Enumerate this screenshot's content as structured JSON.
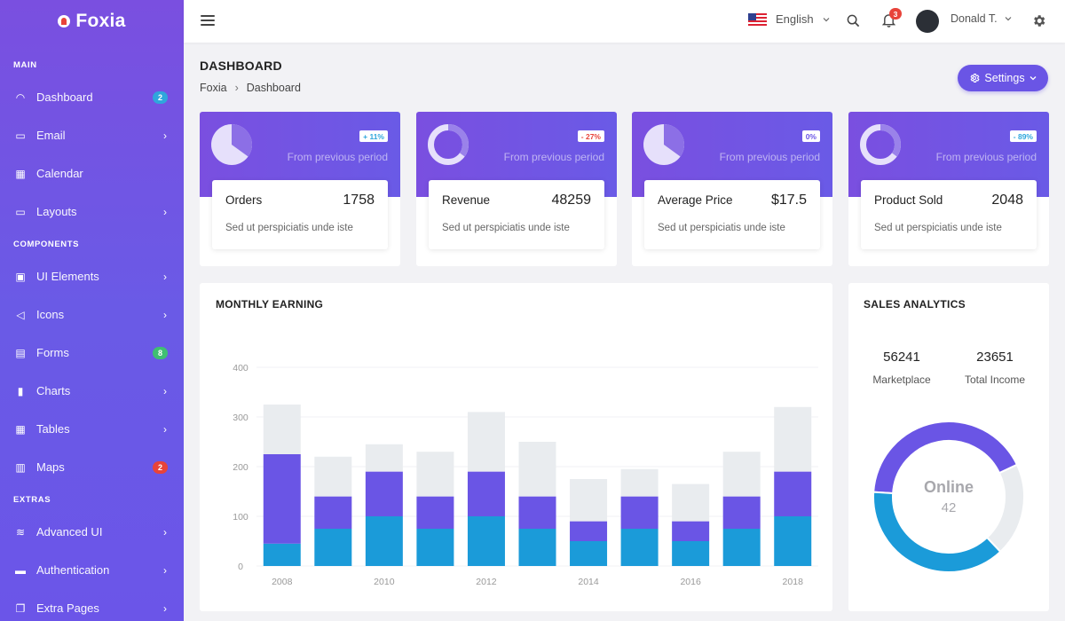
{
  "brand": {
    "name": "Foxia"
  },
  "sidebar": {
    "sections": [
      {
        "title": "MAIN"
      },
      {
        "title": "COMPONENTS"
      },
      {
        "title": "EXTRAS"
      }
    ],
    "items": [
      {
        "label": "Dashboard",
        "icon": "gauge-icon",
        "badge": "2",
        "badge_color": "#2fa6dc"
      },
      {
        "label": "Email",
        "icon": "inbox-icon",
        "chevron": true
      },
      {
        "label": "Calendar",
        "icon": "calendar-icon"
      },
      {
        "label": "Layouts",
        "icon": "monitor-icon",
        "chevron": true
      },
      {
        "label": "UI Elements",
        "icon": "briefcase-icon",
        "chevron": true
      },
      {
        "label": "Icons",
        "icon": "megaphone-icon",
        "chevron": true
      },
      {
        "label": "Forms",
        "icon": "clipboard-icon",
        "badge": "8",
        "badge_color": "#3fbf72"
      },
      {
        "label": "Charts",
        "icon": "bar-chart-icon",
        "chevron": true
      },
      {
        "label": "Tables",
        "icon": "grid-icon",
        "chevron": true
      },
      {
        "label": "Maps",
        "icon": "map-icon",
        "badge": "2",
        "badge_color": "#e8433a"
      },
      {
        "label": "Advanced UI",
        "icon": "layers-icon",
        "chevron": true
      },
      {
        "label": "Authentication",
        "icon": "archive-icon",
        "chevron": true
      },
      {
        "label": "Extra Pages",
        "icon": "copy-icon",
        "chevron": true
      }
    ]
  },
  "topbar": {
    "language": "English",
    "notification_count": "3",
    "username": "Donald T."
  },
  "page": {
    "title": "DASHBOARD",
    "breadcrumb": [
      "Foxia",
      "Dashboard"
    ],
    "settings_label": "Settings"
  },
  "stats": [
    {
      "name": "Orders",
      "value": "1758",
      "change": "+ 11%",
      "change_type": "up",
      "period": "From previous period",
      "desc": "Sed ut perspiciatis unde iste",
      "chart": "pie",
      "fraction": 0.35
    },
    {
      "name": "Revenue",
      "value": "48259",
      "change": "- 27%",
      "change_type": "down",
      "period": "From previous period",
      "desc": "Sed ut perspiciatis unde iste",
      "chart": "donut",
      "fraction": 0.35
    },
    {
      "name": "Average Price",
      "value": "$17.5",
      "change": "0%",
      "change_type": "neutral",
      "period": "From previous period",
      "desc": "Sed ut perspiciatis unde iste",
      "chart": "pie",
      "fraction": 0.35
    },
    {
      "name": "Product Sold",
      "value": "2048",
      "change": "- 89%",
      "change_type": "up",
      "period": "From previous period",
      "desc": "Sed ut perspiciatis unde iste",
      "chart": "donut",
      "fraction": 0.35
    }
  ],
  "monthly_earning": {
    "title": "MONTHLY EARNING"
  },
  "sales_analytics": {
    "title": "SALES ANALYTICS",
    "metrics": [
      {
        "value": "56241",
        "label": "Marketplace"
      },
      {
        "value": "23651",
        "label": "Total Income"
      }
    ],
    "center_label": "Online",
    "center_value": "42"
  },
  "chart_data": [
    {
      "type": "bar",
      "stacked": true,
      "title": "MONTHLY EARNING",
      "categories": [
        "2008",
        "2009",
        "2010",
        "2011",
        "2012",
        "2013",
        "2014",
        "2015",
        "2016",
        "2017",
        "2018"
      ],
      "x_tick_labels": [
        "2008",
        "2010",
        "2012",
        "2014",
        "2016",
        "2018"
      ],
      "ylim": [
        0,
        400
      ],
      "y_ticks": [
        0,
        100,
        200,
        300,
        400
      ],
      "grid": true,
      "colors": [
        "#1b9bd9",
        "#6a55e5",
        "#e9ecef"
      ],
      "series": [
        {
          "values": [
            45,
            75,
            100,
            75,
            100,
            75,
            50,
            75,
            50,
            75,
            100
          ]
        },
        {
          "values": [
            180,
            65,
            90,
            65,
            90,
            65,
            40,
            65,
            40,
            65,
            90
          ]
        },
        {
          "values": [
            100,
            80,
            55,
            90,
            120,
            110,
            85,
            55,
            75,
            90,
            130
          ]
        }
      ]
    },
    {
      "type": "pie",
      "subtype": "donut",
      "title": "SALES ANALYTICS",
      "values": [
        42,
        20,
        38
      ],
      "colors": [
        "#6a55e5",
        "#e9ecef",
        "#1b9bd9"
      ]
    }
  ],
  "colors": {
    "primary": "#6a55e5",
    "accent_blue": "#1b9bd9",
    "danger": "#e8433a",
    "success": "#3fbf72"
  }
}
